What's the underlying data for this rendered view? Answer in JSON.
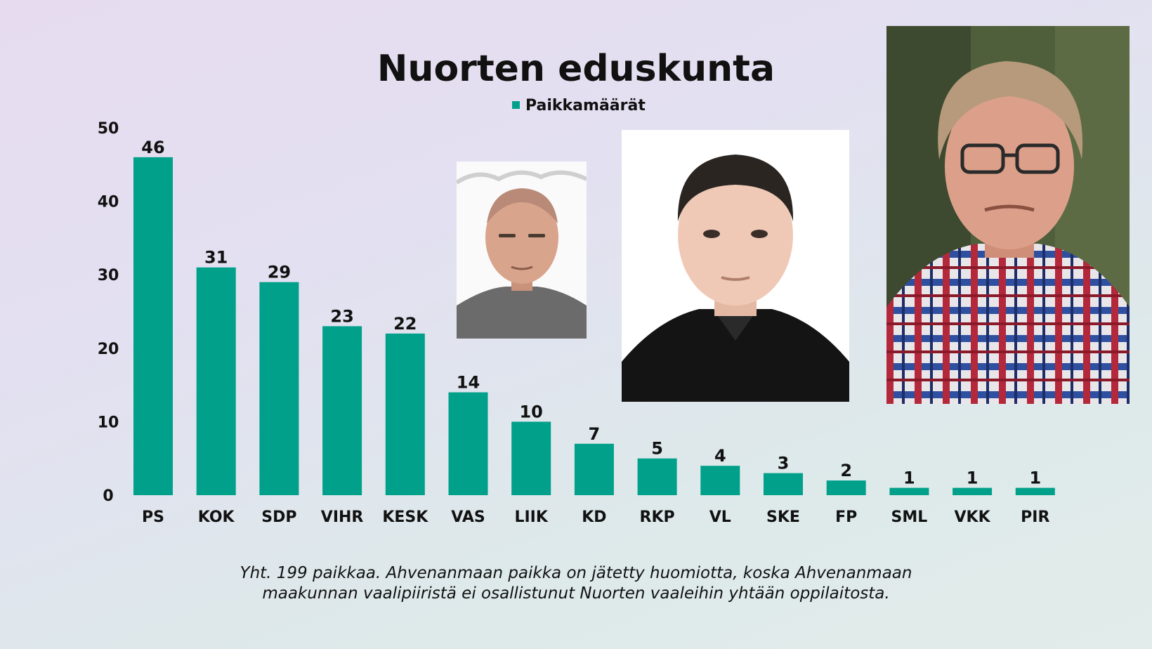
{
  "chart_data": {
    "type": "bar",
    "title": "Nuorten eduskunta",
    "legend": {
      "placement": "top-center",
      "entries": [
        "Paikkamäärät"
      ]
    },
    "series": [
      {
        "name": "Paikkamäärät",
        "color": "#00a08a",
        "values": [
          46,
          31,
          29,
          23,
          22,
          14,
          10,
          7,
          5,
          4,
          3,
          2,
          1,
          1,
          1
        ]
      }
    ],
    "categories": [
      "PS",
      "KOK",
      "SDP",
      "VIHR",
      "KESK",
      "VAS",
      "LIIK",
      "KD",
      "RKP",
      "VL",
      "SKE",
      "FP",
      "SML",
      "VKK",
      "PIR"
    ],
    "yticks": [
      0,
      10,
      20,
      30,
      40,
      50
    ],
    "ylim": [
      0,
      50
    ],
    "grid": false,
    "xlabel": "",
    "ylabel": ""
  },
  "footnote": {
    "line1": "Yht. 199 paikkaa. Ahvenanmaan paikka on jätetty huomiotta,  koska Ahvenanmaan",
    "line2": "maakunnan vaalipiiristä ei osallistunut Nuorten vaaleihin yhtään oppilaitosta."
  },
  "photos": [
    {
      "name": "portrait-1",
      "background": "#ffffff"
    },
    {
      "name": "portrait-2",
      "background": "#ffffff"
    },
    {
      "name": "portrait-3",
      "background": "#4a5a3a"
    }
  ]
}
